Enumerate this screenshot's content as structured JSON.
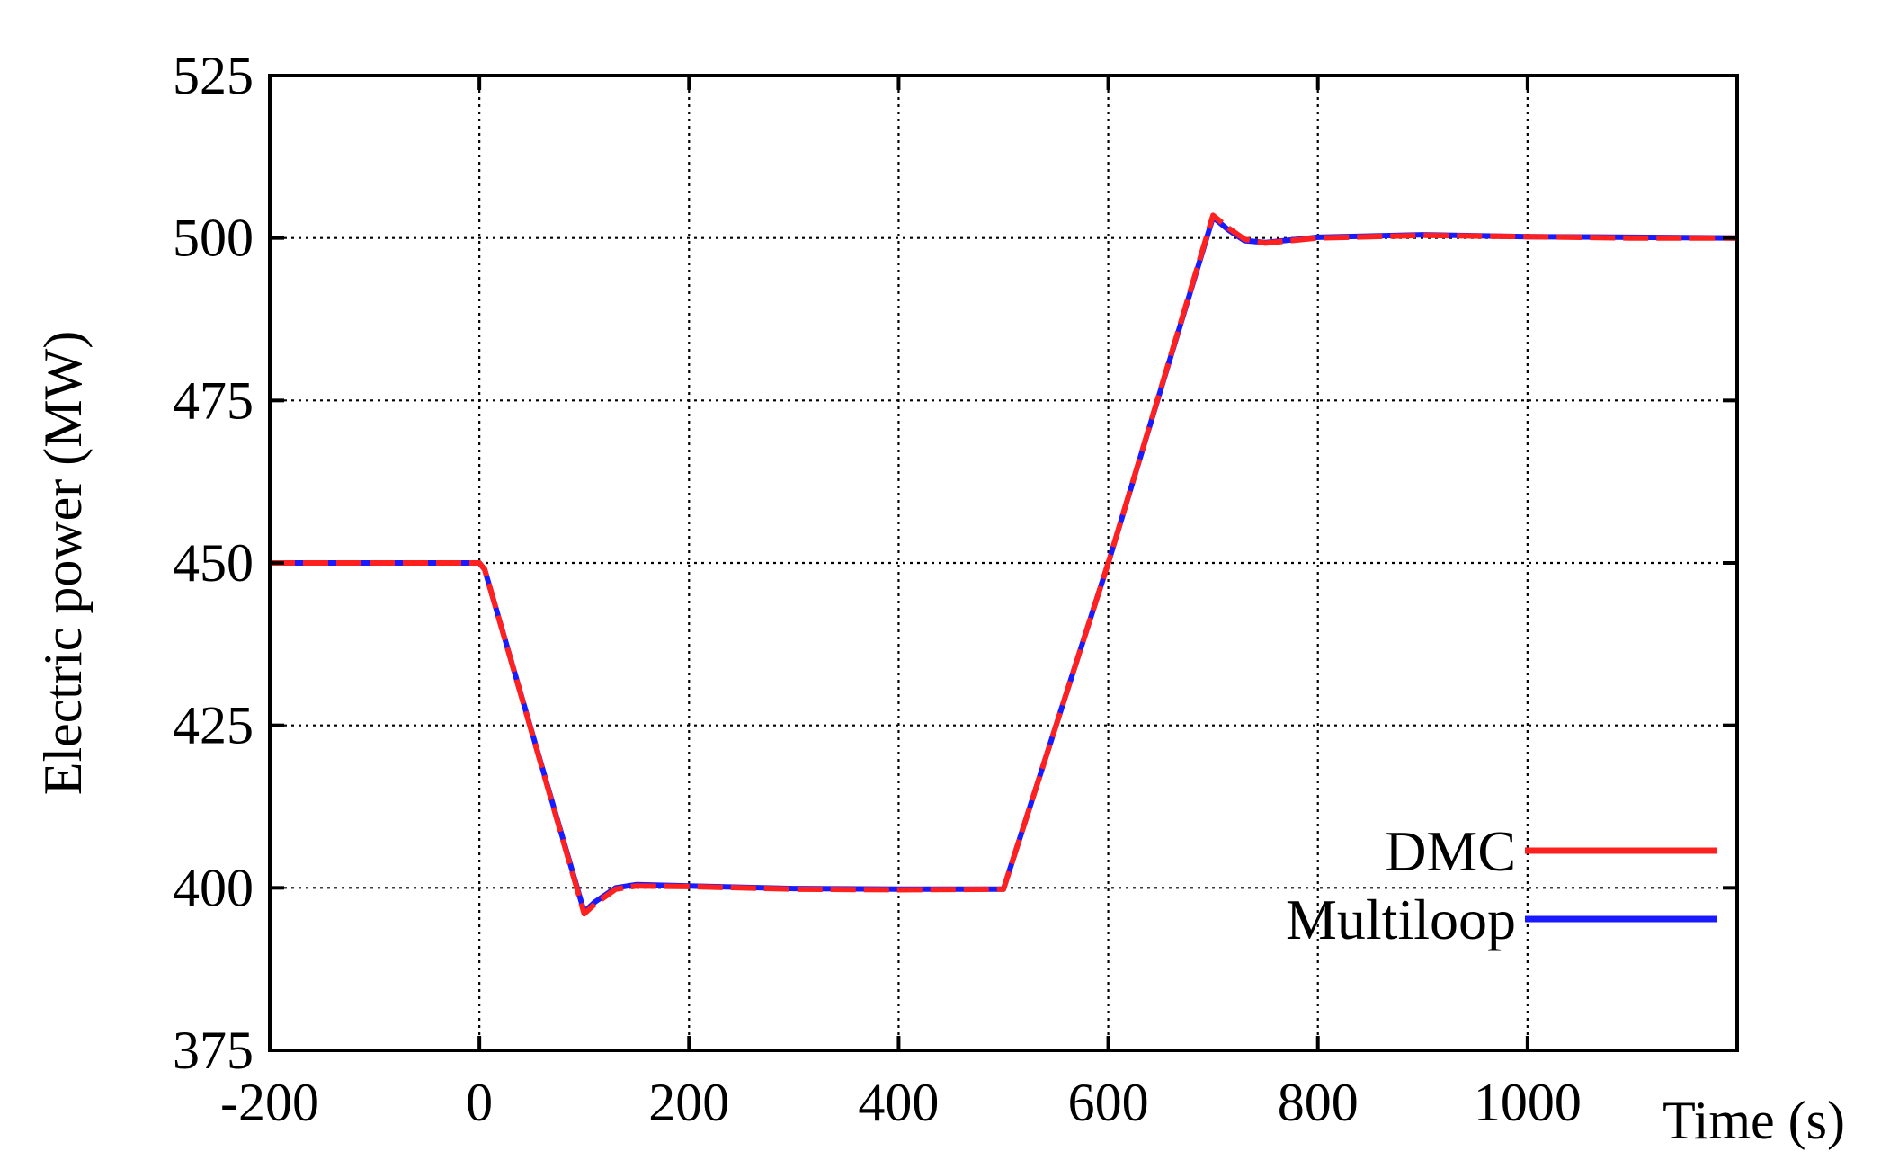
{
  "chart_data": {
    "type": "line",
    "xlabel": "Time (s)",
    "ylabel": "Electric power (MW)",
    "xlim": [
      -200,
      1200
    ],
    "ylim": [
      375,
      525
    ],
    "xticks": [
      -200,
      0,
      200,
      400,
      600,
      800,
      1000
    ],
    "yticks": [
      375,
      400,
      425,
      450,
      475,
      500,
      525
    ],
    "grid": true,
    "legend_position": "bottom-right",
    "series": [
      {
        "name": "DMC",
        "color": "#ff2020",
        "style": "dashed",
        "x": [
          -200,
          0,
          5,
          100,
          110,
          130,
          150,
          200,
          300,
          400,
          500,
          600,
          700,
          715,
          730,
          750,
          800,
          900,
          1000,
          1100,
          1200
        ],
        "y": [
          450,
          450,
          449,
          396,
          397.5,
          399.8,
          400.3,
          400.2,
          399.8,
          399.7,
          399.8,
          450,
          503.5,
          501.5,
          499.8,
          499.2,
          500,
          500.4,
          500.2,
          500,
          500
        ]
      },
      {
        "name": "Multiloop",
        "color": "#1a1aff",
        "style": "solid",
        "x": [
          -200,
          0,
          5,
          100,
          110,
          130,
          150,
          200,
          300,
          400,
          500,
          600,
          700,
          715,
          730,
          750,
          800,
          900,
          1000,
          1100,
          1200
        ],
        "y": [
          450,
          450,
          449,
          396.3,
          397.8,
          400,
          400.5,
          400.3,
          399.9,
          399.8,
          399.8,
          450,
          503.2,
          501.2,
          499.6,
          499.3,
          500.1,
          500.5,
          500.2,
          500.1,
          500
        ]
      }
    ]
  }
}
